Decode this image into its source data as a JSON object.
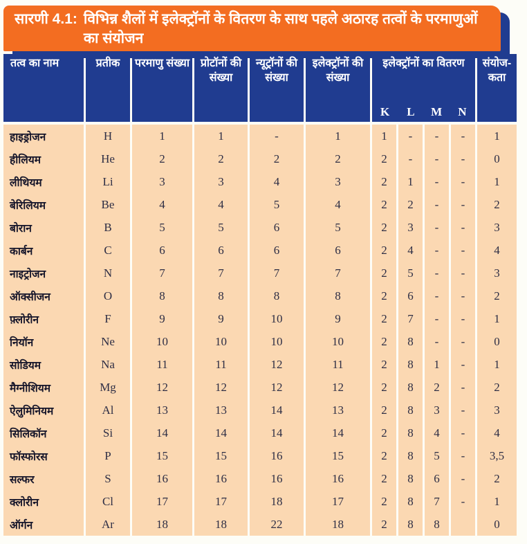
{
  "title": {
    "prefix": "सारणी 4.1:",
    "text": "विभिन्न शैलों में इलेक्ट्रॉनों के वितरण के साथ पहले अठारह तत्वों के परमाणुओं का संयोजन"
  },
  "colors": {
    "title_bar": "#f36d21",
    "header": "#203c90",
    "row": "#fbd8b2",
    "header_text": "#ffffff",
    "body_text": "#2e2e45"
  },
  "table": {
    "columns": [
      {
        "key": "name",
        "label": "तत्व का नाम"
      },
      {
        "key": "symbol",
        "label": "प्रतीक"
      },
      {
        "key": "atomic_number",
        "label": "परमाणु संख्या"
      },
      {
        "key": "protons",
        "label": "प्रोटॉनों की संख्या"
      },
      {
        "key": "neutrons",
        "label": "न्यूट्रॉनों की संख्या"
      },
      {
        "key": "electrons",
        "label": "इलेक्ट्रॉनों की संख्या"
      },
      {
        "key": "distribution",
        "label": "इलेक्ट्रॉनों का वितरण",
        "shells": [
          "K",
          "L",
          "M",
          "N"
        ]
      },
      {
        "key": "valency",
        "label": "संयोज-कता"
      }
    ],
    "field_order": [
      "name",
      "symbol",
      "atomic_number",
      "protons",
      "neutrons",
      "electrons",
      "K",
      "L",
      "M",
      "N",
      "valency"
    ],
    "rows": [
      {
        "name": "हाइड्रोजन",
        "symbol": "H",
        "atomic_number": "1",
        "protons": "1",
        "neutrons": "-",
        "electrons": "1",
        "K": "1",
        "L": "-",
        "M": "-",
        "N": "-",
        "valency": "1"
      },
      {
        "name": "हीलियम",
        "symbol": "He",
        "atomic_number": "2",
        "protons": "2",
        "neutrons": "2",
        "electrons": "2",
        "K": "2",
        "L": "-",
        "M": "-",
        "N": "-",
        "valency": "0"
      },
      {
        "name": "लीथियम",
        "symbol": "Li",
        "atomic_number": "3",
        "protons": "3",
        "neutrons": "4",
        "electrons": "3",
        "K": "2",
        "L": "1",
        "M": "-",
        "N": "-",
        "valency": "1"
      },
      {
        "name": "बेरिलियम",
        "symbol": "Be",
        "atomic_number": "4",
        "protons": "4",
        "neutrons": "5",
        "electrons": "4",
        "K": "2",
        "L": "2",
        "M": "-",
        "N": "-",
        "valency": "2"
      },
      {
        "name": "बोरान",
        "symbol": "B",
        "atomic_number": "5",
        "protons": "5",
        "neutrons": "6",
        "electrons": "5",
        "K": "2",
        "L": "3",
        "M": "-",
        "N": "-",
        "valency": "3"
      },
      {
        "name": "कार्बन",
        "symbol": "C",
        "atomic_number": "6",
        "protons": "6",
        "neutrons": "6",
        "electrons": "6",
        "K": "2",
        "L": "4",
        "M": "-",
        "N": "-",
        "valency": "4"
      },
      {
        "name": "नाइट्रोजन",
        "symbol": "N",
        "atomic_number": "7",
        "protons": "7",
        "neutrons": "7",
        "electrons": "7",
        "K": "2",
        "L": "5",
        "M": "-",
        "N": "-",
        "valency": "3"
      },
      {
        "name": "ऑक्सीजन",
        "symbol": "O",
        "atomic_number": "8",
        "protons": "8",
        "neutrons": "8",
        "electrons": "8",
        "K": "2",
        "L": "6",
        "M": "-",
        "N": "-",
        "valency": "2"
      },
      {
        "name": "फ़्लोरीन",
        "symbol": "F",
        "atomic_number": "9",
        "protons": "9",
        "neutrons": "10",
        "electrons": "9",
        "K": "2",
        "L": "7",
        "M": "-",
        "N": "-",
        "valency": "1"
      },
      {
        "name": "नियॉन",
        "symbol": "Ne",
        "atomic_number": "10",
        "protons": "10",
        "neutrons": "10",
        "electrons": "10",
        "K": "2",
        "L": "8",
        "M": "-",
        "N": "-",
        "valency": "0"
      },
      {
        "name": "सोडियम",
        "symbol": "Na",
        "atomic_number": "11",
        "protons": "11",
        "neutrons": "12",
        "electrons": "11",
        "K": "2",
        "L": "8",
        "M": "1",
        "N": "-",
        "valency": "1"
      },
      {
        "name": "मैग्नीशियम",
        "symbol": "Mg",
        "atomic_number": "12",
        "protons": "12",
        "neutrons": "12",
        "electrons": "12",
        "K": "2",
        "L": "8",
        "M": "2",
        "N": "-",
        "valency": "2"
      },
      {
        "name": "ऐलुमिनियम",
        "symbol": "Al",
        "atomic_number": "13",
        "protons": "13",
        "neutrons": "14",
        "electrons": "13",
        "K": "2",
        "L": "8",
        "M": "3",
        "N": "-",
        "valency": "3"
      },
      {
        "name": "सिलिकॉन",
        "symbol": "Si",
        "atomic_number": "14",
        "protons": "14",
        "neutrons": "14",
        "electrons": "14",
        "K": "2",
        "L": "8",
        "M": "4",
        "N": "-",
        "valency": "4"
      },
      {
        "name": "फॉस्फोरस",
        "symbol": "P",
        "atomic_number": "15",
        "protons": "15",
        "neutrons": "16",
        "electrons": "15",
        "K": "2",
        "L": "8",
        "M": "5",
        "N": "-",
        "valency": "3,5"
      },
      {
        "name": "सल्फर",
        "symbol": "S",
        "atomic_number": "16",
        "protons": "16",
        "neutrons": "16",
        "electrons": "16",
        "K": "2",
        "L": "8",
        "M": "6",
        "N": "-",
        "valency": "2"
      },
      {
        "name": "क्लोरीन",
        "symbol": "Cl",
        "atomic_number": "17",
        "protons": "17",
        "neutrons": "18",
        "electrons": "17",
        "K": "2",
        "L": "8",
        "M": "7",
        "N": "-",
        "valency": "1"
      },
      {
        "name": "ऑर्गन",
        "symbol": "Ar",
        "atomic_number": "18",
        "protons": "18",
        "neutrons": "22",
        "electrons": "18",
        "K": "2",
        "L": "8",
        "M": "8",
        "N": "",
        "valency": "0"
      }
    ]
  }
}
